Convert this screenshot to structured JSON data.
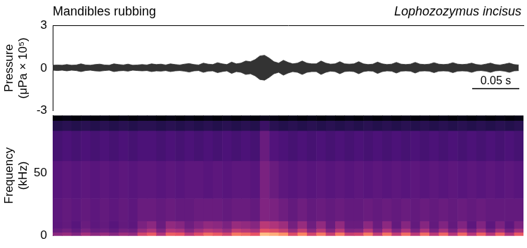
{
  "chart_data": [
    {
      "type": "line",
      "title": "Mandibles rubbing",
      "subtitle": "Lophozozymus incisus",
      "ylabel": "Pressure (μPa × 10⁵)",
      "x": [
        0,
        0.005,
        0.01,
        0.015,
        0.02,
        0.025,
        0.03,
        0.035,
        0.04,
        0.045,
        0.05,
        0.055,
        0.06,
        0.065,
        0.07,
        0.075,
        0.08,
        0.085,
        0.09,
        0.095,
        0.1,
        0.105,
        0.11,
        0.115,
        0.12,
        0.125,
        0.13,
        0.135,
        0.14,
        0.145,
        0.15,
        0.155,
        0.16,
        0.165,
        0.17,
        0.175,
        0.18,
        0.185,
        0.19,
        0.195,
        0.2,
        0.205,
        0.21,
        0.215,
        0.22,
        0.225,
        0.23,
        0.235,
        0.24,
        0.245,
        0.25,
        0.255,
        0.26,
        0.265,
        0.27,
        0.275,
        0.28,
        0.285,
        0.29,
        0.295,
        0.3,
        0.305,
        0.31,
        0.315,
        0.32,
        0.325,
        0.33,
        0.335,
        0.34,
        0.345,
        0.35,
        0.355,
        0.36,
        0.365,
        0.37,
        0.375,
        0.38,
        0.385,
        0.39,
        0.395,
        0.4,
        0.405,
        0.41,
        0.415,
        0.42,
        0.425,
        0.43,
        0.435,
        0.44,
        0.445,
        0.45,
        0.455,
        0.46,
        0.465,
        0.47,
        0.475,
        0.48,
        0.485,
        0.49,
        0.495
      ],
      "envelope": {
        "max": [
          0.2,
          0.22,
          0.2,
          0.25,
          0.2,
          0.22,
          0.3,
          0.22,
          0.2,
          0.25,
          0.28,
          0.22,
          0.2,
          0.3,
          0.25,
          0.22,
          0.28,
          0.2,
          0.22,
          0.25,
          0.22,
          0.3,
          0.25,
          0.28,
          0.22,
          0.3,
          0.25,
          0.22,
          0.28,
          0.32,
          0.25,
          0.22,
          0.35,
          0.28,
          0.25,
          0.38,
          0.3,
          0.25,
          0.42,
          0.3,
          0.35,
          0.5,
          0.45,
          0.6,
          0.85,
          0.9,
          0.7,
          0.45,
          0.35,
          0.55,
          0.4,
          0.3,
          0.35,
          0.5,
          0.35,
          0.3,
          0.3,
          0.5,
          0.35,
          0.28,
          0.3,
          0.45,
          0.3,
          0.28,
          0.3,
          0.45,
          0.3,
          0.25,
          0.28,
          0.42,
          0.3,
          0.25,
          0.28,
          0.4,
          0.28,
          0.25,
          0.28,
          0.4,
          0.28,
          0.25,
          0.28,
          0.38,
          0.28,
          0.25,
          0.28,
          0.38,
          0.28,
          0.25,
          0.28,
          0.35,
          0.25,
          0.22,
          0.28,
          0.35,
          0.25,
          0.22,
          0.28,
          0.35,
          0.25,
          0.22
        ],
        "min": [
          -0.15,
          -0.18,
          -0.15,
          -0.2,
          -0.15,
          -0.18,
          -0.25,
          -0.18,
          -0.15,
          -0.2,
          -0.22,
          -0.18,
          -0.15,
          -0.25,
          -0.2,
          -0.18,
          -0.22,
          -0.15,
          -0.18,
          -0.2,
          -0.18,
          -0.25,
          -0.2,
          -0.22,
          -0.18,
          -0.25,
          -0.2,
          -0.18,
          -0.22,
          -0.28,
          -0.2,
          -0.18,
          -0.3,
          -0.22,
          -0.2,
          -0.32,
          -0.25,
          -0.2,
          -0.38,
          -0.25,
          -0.3,
          -0.45,
          -0.4,
          -0.55,
          -0.8,
          -0.85,
          -0.65,
          -0.4,
          -0.3,
          -0.5,
          -0.35,
          -0.25,
          -0.3,
          -0.45,
          -0.3,
          -0.25,
          -0.25,
          -0.45,
          -0.3,
          -0.22,
          -0.25,
          -0.4,
          -0.25,
          -0.22,
          -0.25,
          -0.4,
          -0.25,
          -0.2,
          -0.22,
          -0.38,
          -0.25,
          -0.2,
          -0.22,
          -0.35,
          -0.22,
          -0.2,
          -0.22,
          -0.35,
          -0.22,
          -0.2,
          -0.22,
          -0.32,
          -0.22,
          -0.2,
          -0.22,
          -0.32,
          -0.22,
          -0.2,
          -0.22,
          -0.3,
          -0.2,
          -0.18,
          -0.22,
          -0.3,
          -0.2,
          -0.18,
          -0.22,
          -0.3,
          -0.2,
          -0.18
        ]
      },
      "color": "#333333",
      "xlim": [
        0,
        0.5
      ],
      "ylim": [
        -3,
        3
      ],
      "yticks": [
        -3,
        0,
        3
      ],
      "grid": false,
      "tick_labels": "y",
      "scale_bar": {
        "value": 0.05,
        "label": "0.05 s"
      }
    },
    {
      "type": "heatmap",
      "ylabel": "Frequency (kHz)",
      "xlim": [
        0,
        0.5
      ],
      "ylim": [
        0,
        96
      ],
      "yticks": [
        0,
        50
      ],
      "time_bins": [
        0,
        0.01,
        0.02,
        0.03,
        0.04,
        0.05,
        0.06,
        0.07,
        0.08,
        0.09,
        0.1,
        0.11,
        0.12,
        0.13,
        0.14,
        0.15,
        0.16,
        0.17,
        0.18,
        0.19,
        0.2,
        0.21,
        0.22,
        0.23,
        0.24,
        0.25,
        0.26,
        0.27,
        0.28,
        0.29,
        0.3,
        0.31,
        0.32,
        0.33,
        0.34,
        0.35,
        0.36,
        0.37,
        0.38,
        0.39,
        0.4,
        0.41,
        0.42,
        0.43,
        0.44,
        0.45,
        0.46,
        0.47,
        0.48,
        0.49,
        0.5
      ],
      "frequency_bins": [
        0,
        3,
        6,
        12,
        30,
        60,
        84,
        92,
        96
      ],
      "cells": [
        [
          -72,
          -70,
          -74,
          -68,
          -72,
          -70,
          -73,
          -69,
          -71,
          -60,
          -55,
          -66,
          -54,
          -56,
          -64,
          -58,
          -52,
          -55,
          -60,
          -50,
          -52,
          -56,
          -40,
          -42,
          -46,
          -58,
          -48,
          -60,
          -50,
          -62,
          -50,
          -62,
          -60,
          -50,
          -63,
          -51,
          -63,
          -52,
          -64,
          -52,
          -64,
          -53,
          -65,
          -53,
          -65,
          -54,
          -65,
          -54,
          -66,
          -55
        ],
        [
          -78,
          -76,
          -79,
          -75,
          -78,
          -77,
          -79,
          -76,
          -77,
          -70,
          -66,
          -74,
          -65,
          -67,
          -73,
          -68,
          -64,
          -66,
          -70,
          -62,
          -64,
          -67,
          -56,
          -58,
          -62,
          -70,
          -62,
          -72,
          -64,
          -73,
          -64,
          -74,
          -73,
          -64,
          -74,
          -65,
          -74,
          -66,
          -75,
          -66,
          -75,
          -67,
          -75,
          -67,
          -75,
          -68,
          -76,
          -68,
          -76,
          -68
        ],
        [
          -80,
          -79,
          -81,
          -78,
          -80,
          -79,
          -81,
          -79,
          -80,
          -75,
          -72,
          -78,
          -71,
          -73,
          -77,
          -74,
          -71,
          -72,
          -75,
          -70,
          -71,
          -73,
          -64,
          -66,
          -69,
          -76,
          -70,
          -77,
          -71,
          -78,
          -71,
          -78,
          -78,
          -72,
          -78,
          -72,
          -79,
          -73,
          -79,
          -73,
          -79,
          -74,
          -79,
          -74,
          -80,
          -74,
          -80,
          -75,
          -80,
          -75
        ],
        [
          -80,
          -79,
          -80,
          -79,
          -80,
          -79,
          -80,
          -79,
          -80,
          -78,
          -78,
          -79,
          -78,
          -79,
          -79,
          -78,
          -78,
          -78,
          -79,
          -78,
          -78,
          -79,
          -74,
          -75,
          -77,
          -79,
          -77,
          -79,
          -78,
          -79,
          -78,
          -79,
          -79,
          -78,
          -79,
          -78,
          -79,
          -78,
          -79,
          -78,
          -79,
          -78,
          -79,
          -78,
          -79,
          -78,
          -79,
          -79,
          -79,
          -79
        ],
        [
          -81,
          -80,
          -81,
          -80,
          -81,
          -80,
          -81,
          -80,
          -81,
          -80,
          -80,
          -81,
          -80,
          -81,
          -80,
          -80,
          -81,
          -80,
          -81,
          -80,
          -80,
          -81,
          -75,
          -78,
          -80,
          -81,
          -80,
          -81,
          -80,
          -81,
          -80,
          -81,
          -80,
          -81,
          -80,
          -81,
          -80,
          -81,
          -80,
          -81,
          -80,
          -81,
          -80,
          -81,
          -80,
          -81,
          -80,
          -81,
          -80,
          -81
        ],
        [
          -84,
          -83,
          -84,
          -83,
          -84,
          -83,
          -84,
          -83,
          -84,
          -83,
          -83,
          -84,
          -83,
          -84,
          -83,
          -84,
          -83,
          -84,
          -83,
          -84,
          -83,
          -84,
          -78,
          -82,
          -83,
          -84,
          -83,
          -84,
          -83,
          -84,
          -83,
          -84,
          -83,
          -84,
          -83,
          -84,
          -83,
          -84,
          -83,
          -84,
          -83,
          -84,
          -83,
          -84,
          -83,
          -84,
          -83,
          -84,
          -83,
          -84
        ],
        [
          -90,
          -89,
          -90,
          -89,
          -90,
          -89,
          -90,
          -89,
          -90,
          -89,
          -89,
          -90,
          -89,
          -90,
          -89,
          -90,
          -89,
          -90,
          -89,
          -90,
          -89,
          -90,
          -86,
          -89,
          -90,
          -89,
          -90,
          -89,
          -90,
          -89,
          -90,
          -89,
          -90,
          -89,
          -90,
          -89,
          -90,
          -89,
          -90,
          -89,
          -90,
          -89,
          -90,
          -89,
          -90,
          -89,
          -90,
          -89,
          -90,
          -89
        ],
        [
          -99,
          -98,
          -99,
          -98,
          -99,
          -98,
          -99,
          -98,
          -99,
          -98,
          -98,
          -99,
          -98,
          -99,
          -98,
          -99,
          -98,
          -99,
          -98,
          -99,
          -98,
          -99,
          -97,
          -98,
          -99,
          -98,
          -99,
          -98,
          -99,
          -98,
          -99,
          -98,
          -99,
          -98,
          -99,
          -98,
          -99,
          -98,
          -99,
          -98,
          -99,
          -98,
          -99,
          -98,
          -99,
          -98,
          -99,
          -98,
          -99,
          -98
        ]
      ],
      "clim": [
        -100,
        -30
      ],
      "grid": false,
      "tick_labels": "y"
    }
  ]
}
